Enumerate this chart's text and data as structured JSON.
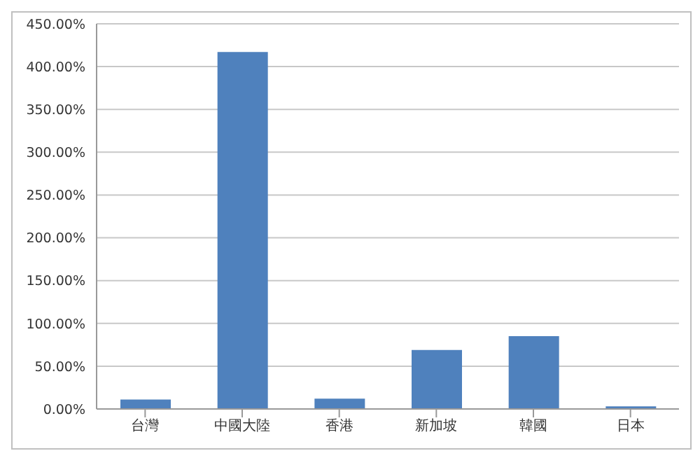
{
  "chart_data": {
    "type": "bar",
    "categories": [
      "台灣",
      "中國大陸",
      "香港",
      "新加坡",
      "韓國",
      "日本"
    ],
    "values": [
      11,
      417,
      12,
      69,
      85,
      3
    ],
    "color": "#4f81bd",
    "ylim": [
      0,
      450
    ],
    "yticks": [
      {
        "value": 0,
        "label": "0.00%"
      },
      {
        "value": 50,
        "label": "50.00%"
      },
      {
        "value": 100,
        "label": "100.00%"
      },
      {
        "value": 150,
        "label": "150.00%"
      },
      {
        "value": 200,
        "label": "200.00%"
      },
      {
        "value": 250,
        "label": "250.00%"
      },
      {
        "value": 300,
        "label": "300.00%"
      },
      {
        "value": 350,
        "label": "350.00%"
      },
      {
        "value": 400,
        "label": "400.00%"
      },
      {
        "value": 450,
        "label": "450.00%"
      }
    ],
    "grid": "y"
  }
}
